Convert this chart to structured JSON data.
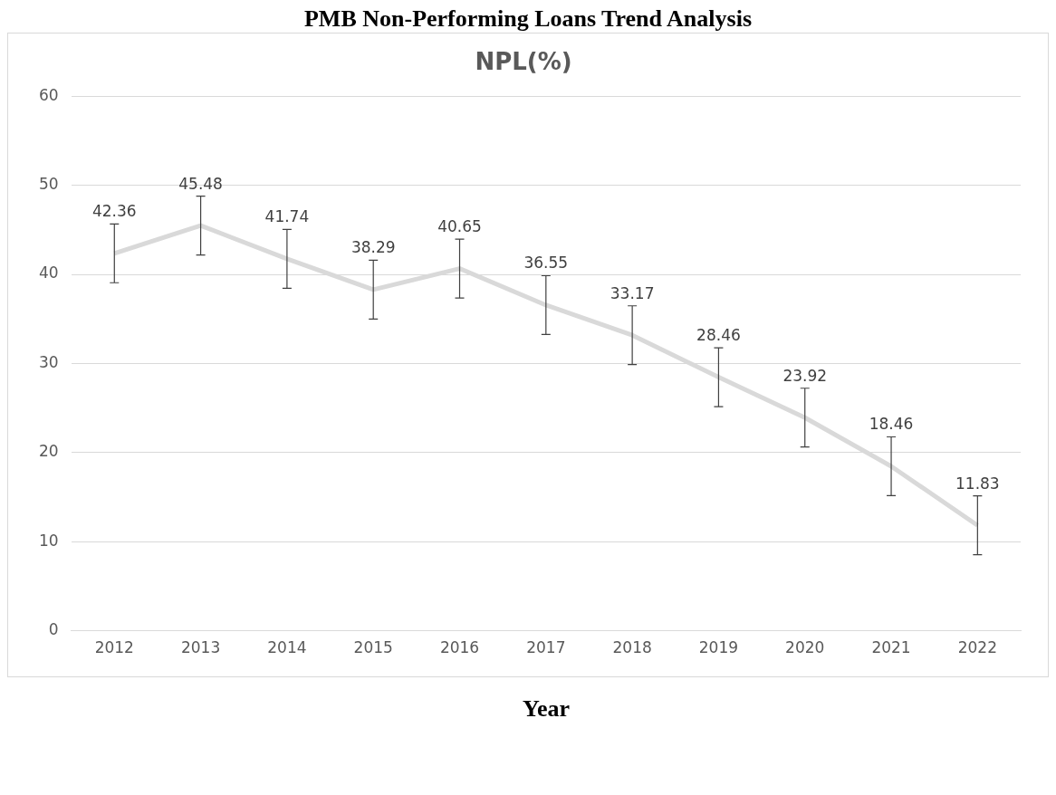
{
  "chart_data": {
    "type": "line",
    "title": "PMB Non-Performing Loans Trend Analysis",
    "subtitle": "NPL(%)",
    "xlabel": "Year",
    "categories": [
      "2012",
      "2013",
      "2014",
      "2015",
      "2016",
      "2017",
      "2018",
      "2019",
      "2020",
      "2021",
      "2022"
    ],
    "series": [
      {
        "color": "#d9d9d9",
        "values": [
          42.36,
          45.48,
          41.74,
          38.29,
          40.65,
          36.55,
          33.17,
          28.46,
          23.92,
          18.46,
          11.83
        ],
        "errors": [
          3.3,
          3.3,
          3.3,
          3.3,
          3.3,
          3.3,
          3.3,
          3.3,
          3.3,
          3.3,
          3.3
        ]
      }
    ],
    "ylim": [
      0,
      60
    ],
    "yticks": [
      0,
      10,
      20,
      30,
      40,
      50,
      60
    ],
    "grid": "y",
    "legend": false,
    "marker": "none",
    "line_style": "solid",
    "data_labels": true
  }
}
